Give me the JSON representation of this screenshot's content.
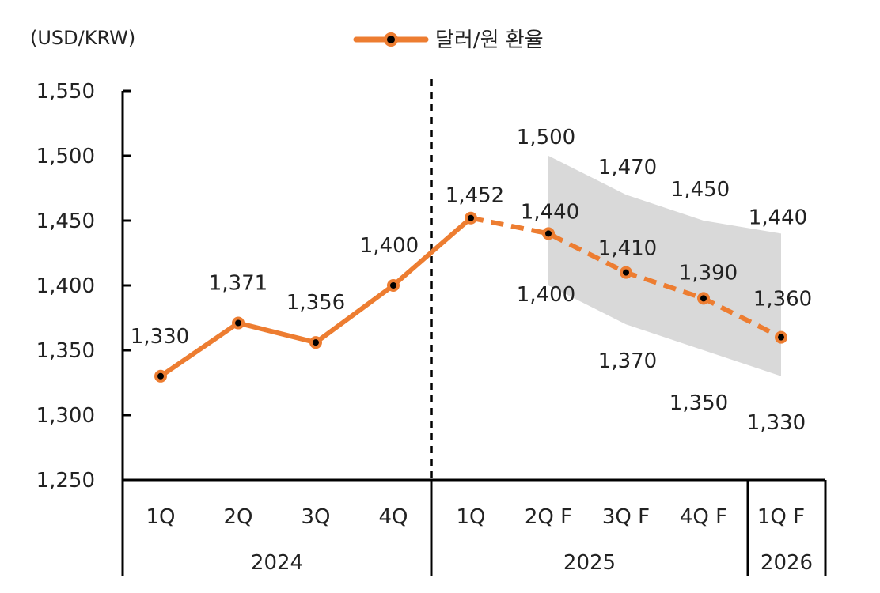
{
  "chart_data": {
    "type": "line",
    "unit_label": "(USD/KRW)",
    "legend": {
      "label": "달러/원 환율",
      "color": "#ED7D31",
      "placement": "top"
    },
    "ylim": [
      1250,
      1550
    ],
    "yticks": [
      "1,550",
      "1,500",
      "1,450",
      "1,400",
      "1,350",
      "1,300",
      "1,250"
    ],
    "ytick_values": [
      1550,
      1500,
      1450,
      1400,
      1350,
      1300,
      1250
    ],
    "categories": [
      "1Q",
      "2Q",
      "3Q",
      "4Q",
      "1Q",
      "2Q F",
      "3Q F",
      "4Q F",
      "1Q F"
    ],
    "years": [
      {
        "label": "2024",
        "span": [
          0,
          3
        ]
      },
      {
        "label": "2025",
        "span": [
          4,
          7
        ]
      },
      {
        "label": "2026",
        "span": [
          8,
          8
        ]
      }
    ],
    "series": [
      {
        "name": "달러/원 환율",
        "values": [
          1330,
          1371,
          1356,
          1400,
          1452,
          1440,
          1410,
          1390,
          1360
        ],
        "labels": [
          "1,330",
          "1,371",
          "1,356",
          "1,400",
          "1,452",
          "1,440",
          "1,410",
          "1,390",
          "1,360"
        ],
        "actual_count": 5
      }
    ],
    "band": {
      "start_index": 5,
      "upper": [
        1500,
        1470,
        1450,
        1440
      ],
      "lower": [
        1400,
        1370,
        1350,
        1330
      ],
      "upper_labels": [
        "1,500",
        "1,470",
        "1,450",
        "1,440"
      ],
      "lower_labels": [
        "1,400",
        "1,370",
        "1,350",
        "1,330"
      ],
      "color": "#D9D9D9"
    },
    "divider_after_index": 3,
    "grid": false
  }
}
